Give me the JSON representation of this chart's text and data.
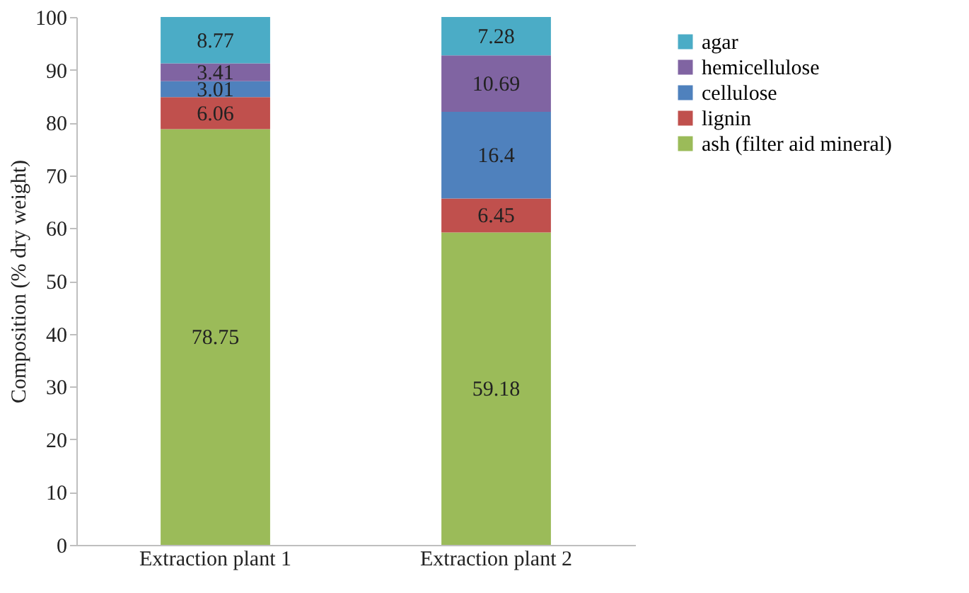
{
  "chart_data": {
    "type": "bar",
    "stacked": true,
    "ylabel": "Composition (% dry weight)",
    "categories": [
      "Extraction plant 1",
      "Extraction plant 2"
    ],
    "series": [
      {
        "name": "ash (filter aid mineral)",
        "color": "#9bbb59",
        "values": [
          78.75,
          59.18
        ]
      },
      {
        "name": "lignin",
        "color": "#c0504d",
        "values": [
          6.06,
          6.45
        ]
      },
      {
        "name": "cellulose",
        "color": "#4f81bd",
        "values": [
          3.01,
          16.4
        ]
      },
      {
        "name": "hemicellulose",
        "color": "#8064a2",
        "values": [
          3.41,
          10.69
        ]
      },
      {
        "name": "agar",
        "color": "#4bacc6",
        "values": [
          8.77,
          7.28
        ]
      }
    ],
    "ylim": [
      0,
      100
    ],
    "yticks": [
      0,
      10,
      20,
      30,
      40,
      50,
      60,
      70,
      80,
      90,
      100
    ],
    "grid": false,
    "legend": "right",
    "data_labels": true
  }
}
